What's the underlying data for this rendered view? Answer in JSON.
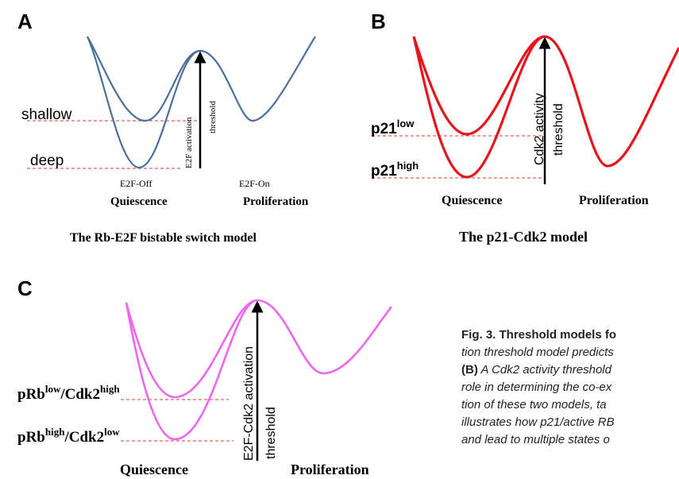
{
  "colors": {
    "panel_a_curve": "#4a6f9c",
    "panel_b_curve": "#e8141c",
    "panel_c_curve": "#ee66ee",
    "dashed_line": "#e3342f",
    "arrow": "#000000"
  },
  "panel_a": {
    "letter": "A",
    "shallow_label": "shallow",
    "deep_label": "deep",
    "threshold_label_line1": "E2F activation",
    "threshold_label_line2": "threshold",
    "off_label": "E2F-Off",
    "on_label": "E2F-On",
    "left_state": "Quiescence",
    "right_state": "Proliferation",
    "title": "The Rb-E2F bistable switch model"
  },
  "panel_b": {
    "letter": "B",
    "low_label": "p21",
    "low_sup": "low",
    "high_label": "p21",
    "high_sup": "high",
    "threshold_label_line1": "Cdk2 activity",
    "threshold_label_line2": "threshold",
    "left_state": "Quiescence",
    "right_state": "Proliferation",
    "title": "The p21-Cdk2 model"
  },
  "panel_c": {
    "letter": "C",
    "upper_label_a": "pRb",
    "upper_sup_a": "low",
    "upper_label_b": "/Cdk2",
    "upper_sup_b": "high",
    "lower_label_a": "pRb",
    "lower_sup_a": "high",
    "lower_label_b": "/Cdk2",
    "lower_sup_b": "low",
    "threshold_label_line1": "E2F-Cdk2 activation",
    "threshold_label_line2": "threshold",
    "left_state": "Quiescence",
    "right_state": "Proliferation"
  },
  "caption": {
    "line1_bold": "Fig. 3. Threshold models fo",
    "line2": "tion threshold model predicts",
    "line3_bold": "(B)",
    "line3": " A Cdk2 activity threshold",
    "line4": "role in determining the co-ex",
    "line5": "tion of these two models, ta",
    "line6": "illustrates how p21/active RB",
    "line7": "and lead to multiple states o"
  }
}
